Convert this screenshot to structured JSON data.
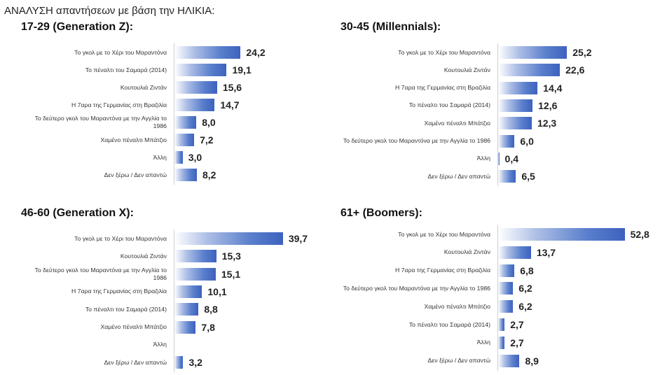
{
  "heading": "ΑΝΑΛΥΣΗ απαντήσεων με βάση την ΗΛΙΚΙΑ:",
  "chart_data": [
    {
      "type": "bar",
      "title": "17-29 (Generation Z):",
      "categories": [
        "Το γκολ με το Χέρι του Μαραντόνα",
        "Το πέναλτι του Σαμαρά (2014)",
        "Κουτουλιά Ζιντάν",
        "Η 7αρα της Γερμανίας στη Βραζιλία",
        "Το δεύτερο γκολ του Μαραντόνα με την Αγγλία το 1986",
        "Χαμένο πέναλτι Μπάτζιο",
        "Άλλη",
        "Δεν ξέρω / Δεν απαντώ"
      ],
      "values": [
        24.2,
        19.1,
        15.6,
        14.7,
        8.0,
        7.2,
        3.0,
        8.2
      ],
      "labels": [
        "24,2",
        "19,1",
        "15,6",
        "14,7",
        "8,0",
        "7,2",
        "3,0",
        "8,2"
      ]
    },
    {
      "type": "bar",
      "title": "30-45 (Millennials):",
      "categories": [
        "Το γκολ με το Χέρι του Μαραντόνα",
        "Κουτουλιά Ζιντάν",
        "Η 7αρα της Γερμανίας στη Βραζιλία",
        "Το πέναλτι του Σαμαρά (2014)",
        "Χαμένο πέναλτι Μπάτζιο",
        "Το δεύτερο γκολ του Μαραντόνα με την Αγγλία το 1986",
        "Άλλη",
        "Δεν ξέρω / Δεν απαντώ"
      ],
      "values": [
        25.2,
        22.6,
        14.4,
        12.6,
        12.3,
        6.0,
        0.4,
        6.5
      ],
      "labels": [
        "25,2",
        "22,6",
        "14,4",
        "12,6",
        "12,3",
        "6,0",
        "0,4",
        "6,5"
      ]
    },
    {
      "type": "bar",
      "title": "46-60 (Generation X):",
      "categories": [
        "Το γκολ με το Χέρι του Μαραντόνα",
        "Κουτουλιά Ζιντάν",
        "Το δεύτερο γκολ του Μαραντόνα με την Αγγλία το 1986",
        "Η 7αρα της Γερμανίας στη Βραζιλία",
        "Το πέναλτι του Σαμαρά (2014)",
        "Χαμένο πέναλτι Μπάτζιο",
        "Άλλη",
        "Δεν ξέρω / Δεν απαντώ"
      ],
      "values": [
        39.7,
        15.3,
        15.1,
        10.1,
        8.8,
        7.8,
        0,
        3.2
      ],
      "labels": [
        "39,7",
        "15,3",
        "15,1",
        "10,1",
        "8,8",
        "7,8",
        "",
        "3,2"
      ]
    },
    {
      "type": "bar",
      "title": "61+ (Boomers):",
      "categories": [
        "Το γκολ με το Χέρι του Μαραντόνα",
        "Κουτουλιά Ζιντάν",
        "Η 7αρα της Γερμανίας στη Βραζιλία",
        "Το δεύτερο γκολ του Μαραντόνα με την Αγγλία το 1986",
        "Χαμένο πέναλτι Μπάτζιο",
        "Το πέναλτι του Σαμαρά (2014)",
        "Άλλη",
        "Δεν ξέρω / Δεν απαντώ"
      ],
      "values": [
        52.8,
        13.7,
        6.8,
        6.2,
        6.2,
        2.7,
        2.7,
        8.9
      ],
      "labels": [
        "52,8",
        "13,7",
        "6,8",
        "6,2",
        "6,2",
        "2,7",
        "2,7",
        "8,9"
      ]
    }
  ]
}
